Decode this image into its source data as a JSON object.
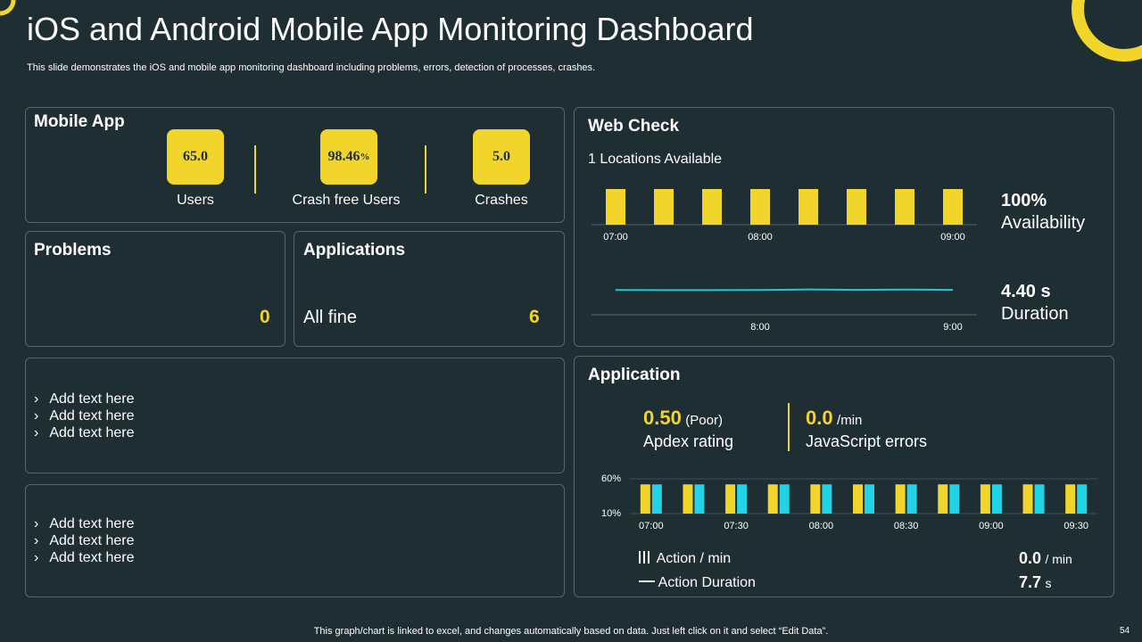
{
  "header": {
    "title": "iOS and Android Mobile App Monitoring Dashboard",
    "subtitle": "This slide demonstrates the iOS and mobile app monitoring dashboard including problems, errors, detection of processes, crashes."
  },
  "mobile_app": {
    "title": "Mobile App",
    "metrics": [
      {
        "value": "65.0",
        "label": "Users"
      },
      {
        "value": "98.46",
        "unit": "%",
        "label": "Crash free Users"
      },
      {
        "value": "5.0",
        "label": "Crashes"
      }
    ]
  },
  "problems": {
    "title": "Problems",
    "value": "0"
  },
  "applications": {
    "title": "Applications",
    "status": "All fine",
    "value": "6"
  },
  "notes": [
    [
      "Add text here",
      "Add text here",
      "Add text here"
    ],
    [
      "Add text here",
      "Add text here",
      "Add text here"
    ]
  ],
  "web_check": {
    "title": "Web Check",
    "subtitle": "1 Locations Available",
    "availability_chart": {
      "type": "bar",
      "categories": [
        "07:00",
        null,
        null,
        "08:00",
        null,
        null,
        null,
        "09:00"
      ],
      "values": [
        100,
        100,
        100,
        100,
        100,
        100,
        100,
        100
      ],
      "ylim": [
        0,
        100
      ],
      "color": "#f2d52a"
    },
    "duration_chart": {
      "type": "line",
      "categories": [
        null,
        null,
        null,
        "8:00",
        null,
        null,
        null,
        "9:00"
      ],
      "values": [
        4.4,
        4.38,
        4.38,
        4.4,
        4.5,
        4.42,
        4.48,
        4.42
      ],
      "ylim": [
        0,
        10
      ],
      "color": "#22c7d6"
    },
    "availability": {
      "value": "100%",
      "label": "Availability"
    },
    "duration": {
      "value": "4.40 s",
      "label": "Duration"
    }
  },
  "application": {
    "title": "Application",
    "apdex": {
      "value": "0.50",
      "note": "(Poor)",
      "label": "Apdex rating"
    },
    "js_errors": {
      "value": "0.0",
      "unit": "/min",
      "label": "JavaScript errors"
    },
    "chart": {
      "type": "bar",
      "categories": [
        "07:00",
        null,
        "07:30",
        null,
        "08:00",
        null,
        "08:30",
        null,
        "09:00",
        null,
        "09:30"
      ],
      "ylim": [
        10,
        60
      ],
      "yticks": [
        {
          "value": 60,
          "label": "60%"
        },
        {
          "value": 10,
          "label": "10%"
        }
      ],
      "grid": true,
      "series": [
        {
          "name": "Action / min",
          "color": "#f2d52a",
          "values": [
            52,
            52,
            52,
            52,
            52,
            52,
            52,
            52,
            52,
            52,
            52
          ]
        },
        {
          "name": "Action Duration",
          "color": "#22d3e6",
          "values": [
            52,
            52,
            52,
            52,
            52,
            52,
            52,
            52,
            52,
            52,
            52
          ]
        }
      ]
    },
    "legend_values": [
      {
        "value": "0.0",
        "unit": "/ min"
      },
      {
        "value": "7.7",
        "unit": "s"
      }
    ]
  },
  "footer": {
    "note": "This graph/chart is linked to excel,  and changes automatically based on data. Just left click on it and select “Edit Data”.",
    "page": "54"
  }
}
